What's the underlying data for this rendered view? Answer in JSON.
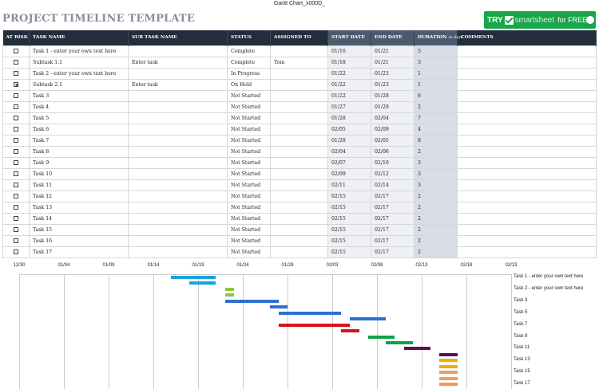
{
  "window": {
    "title": "Gantt Chart_x000D_"
  },
  "page": {
    "title": "PROJECT TIMELINE TEMPLATE"
  },
  "banner": {
    "try": "TRY",
    "brand": "smartsheet",
    "free": "for FREE",
    "color": "#19a64a"
  },
  "table": {
    "headers": {
      "at_risk": "AT RISK",
      "task_name": "TASK NAME",
      "sub_task_name": "SUB TASK NAME",
      "status": "STATUS",
      "assigned_to": "ASSIGNED TO",
      "start_date": "START DATE",
      "end_date": "END DATE",
      "duration": "DURATION",
      "duration_sub": "in days",
      "comments": "COMMENTS"
    },
    "rows": [
      {
        "risk": false,
        "task": "Task 1 - enter your own text here",
        "sub": "",
        "status": "Complete",
        "assigned": "",
        "start": "01/16",
        "end": "01/21",
        "dur": "5",
        "comments": ""
      },
      {
        "risk": false,
        "task": "Subtask 1.1",
        "sub": "Enter task",
        "status": "Complete",
        "assigned": "Tom",
        "start": "01/18",
        "end": "01/21",
        "dur": "3",
        "comments": ""
      },
      {
        "risk": false,
        "task": "Task 2 - enter your own text here",
        "sub": "",
        "status": "In Progress",
        "assigned": "",
        "start": "01/22",
        "end": "01/23",
        "dur": "1",
        "comments": ""
      },
      {
        "risk": true,
        "task": "Subtask 2.1",
        "sub": "Enter task",
        "status": "On Hold",
        "assigned": "",
        "start": "01/22",
        "end": "01/23",
        "dur": "1",
        "comments": ""
      },
      {
        "risk": false,
        "task": "Task 3",
        "sub": "",
        "status": "Not Started",
        "assigned": "",
        "start": "01/22",
        "end": "01/28",
        "dur": "6",
        "comments": ""
      },
      {
        "risk": false,
        "task": "Task 4",
        "sub": "",
        "status": "Not Started",
        "assigned": "",
        "start": "01/27",
        "end": "01/29",
        "dur": "2",
        "comments": ""
      },
      {
        "risk": false,
        "task": "Task 5",
        "sub": "",
        "status": "Not Started",
        "assigned": "",
        "start": "01/28",
        "end": "02/04",
        "dur": "7",
        "comments": ""
      },
      {
        "risk": false,
        "task": "Task 6",
        "sub": "",
        "status": "Not Started",
        "assigned": "",
        "start": "02/05",
        "end": "02/09",
        "dur": "4",
        "comments": ""
      },
      {
        "risk": false,
        "task": "Task 7",
        "sub": "",
        "status": "Not Started",
        "assigned": "",
        "start": "01/28",
        "end": "02/05",
        "dur": "8",
        "comments": ""
      },
      {
        "risk": false,
        "task": "Task 8",
        "sub": "",
        "status": "Not Started",
        "assigned": "",
        "start": "02/04",
        "end": "02/06",
        "dur": "2",
        "comments": ""
      },
      {
        "risk": false,
        "task": "Task 9",
        "sub": "",
        "status": "Not Started",
        "assigned": "",
        "start": "02/07",
        "end": "02/10",
        "dur": "3",
        "comments": ""
      },
      {
        "risk": false,
        "task": "Task 10",
        "sub": "",
        "status": "Not Started",
        "assigned": "",
        "start": "02/09",
        "end": "02/12",
        "dur": "3",
        "comments": ""
      },
      {
        "risk": false,
        "task": "Task 11",
        "sub": "",
        "status": "Not Started",
        "assigned": "",
        "start": "02/11",
        "end": "02/14",
        "dur": "3",
        "comments": ""
      },
      {
        "risk": false,
        "task": "Task 12",
        "sub": "",
        "status": "Not Started",
        "assigned": "",
        "start": "02/15",
        "end": "02/17",
        "dur": "2",
        "comments": ""
      },
      {
        "risk": false,
        "task": "Task 13",
        "sub": "",
        "status": "Not Started",
        "assigned": "",
        "start": "02/15",
        "end": "02/17",
        "dur": "2",
        "comments": ""
      },
      {
        "risk": false,
        "task": "Task 14",
        "sub": "",
        "status": "Not Started",
        "assigned": "",
        "start": "02/15",
        "end": "02/17",
        "dur": "2",
        "comments": ""
      },
      {
        "risk": false,
        "task": "Task 15",
        "sub": "",
        "status": "Not Started",
        "assigned": "",
        "start": "02/15",
        "end": "02/17",
        "dur": "2",
        "comments": ""
      },
      {
        "risk": false,
        "task": "Task 16",
        "sub": "",
        "status": "Not Started",
        "assigned": "",
        "start": "02/15",
        "end": "02/17",
        "dur": "2",
        "comments": ""
      },
      {
        "risk": false,
        "task": "Task 17",
        "sub": "",
        "status": "Not Started",
        "assigned": "",
        "start": "02/15",
        "end": "02/17",
        "dur": "2",
        "comments": ""
      }
    ]
  },
  "gantt": {
    "ticks": [
      "12/30",
      "01/04",
      "01/09",
      "01/14",
      "01/19",
      "01/24",
      "01/29",
      "02/03",
      "02/08",
      "02/13",
      "02/18",
      "02/23"
    ],
    "row_labels": [
      "Task 1 - enter your own text here",
      "Task 2 - enter your own text here",
      "Task 3",
      "Task 5",
      "Task 7",
      "Task 9",
      "Task 11",
      "Task 13",
      "Task 15",
      "Task 17"
    ],
    "bars": [
      {
        "start": "01/16",
        "end": "01/21",
        "color": "#1aa3d9"
      },
      {
        "start": "01/18",
        "end": "01/21",
        "color": "#1aa3d9"
      },
      {
        "start": "01/22",
        "end": "01/23",
        "color": "#8cc63f"
      },
      {
        "start": "01/22",
        "end": "01/23",
        "color": "#8cc63f"
      },
      {
        "start": "01/22",
        "end": "01/28",
        "color": "#2f6fd1"
      },
      {
        "start": "01/27",
        "end": "01/29",
        "color": "#2f6fd1"
      },
      {
        "start": "01/28",
        "end": "02/04",
        "color": "#2f6fd1"
      },
      {
        "start": "02/05",
        "end": "02/09",
        "color": "#2f6fd1"
      },
      {
        "start": "01/28",
        "end": "02/05",
        "color": "#d4161c"
      },
      {
        "start": "02/04",
        "end": "02/06",
        "color": "#d4161c"
      },
      {
        "start": "02/07",
        "end": "02/10",
        "color": "#10a24a"
      },
      {
        "start": "02/09",
        "end": "02/12",
        "color": "#10a24a"
      },
      {
        "start": "02/11",
        "end": "02/14",
        "color": "#5a0f5e"
      },
      {
        "start": "02/15",
        "end": "02/17",
        "color": "#5a0f5e"
      },
      {
        "start": "02/15",
        "end": "02/17",
        "color": "#f2b000"
      },
      {
        "start": "02/15",
        "end": "02/17",
        "color": "#f2b000"
      },
      {
        "start": "02/15",
        "end": "02/17",
        "color": "#f39a5a"
      },
      {
        "start": "02/15",
        "end": "02/17",
        "color": "#f39a5a"
      },
      {
        "start": "02/15",
        "end": "02/17",
        "color": "#f39a5a"
      }
    ]
  }
}
